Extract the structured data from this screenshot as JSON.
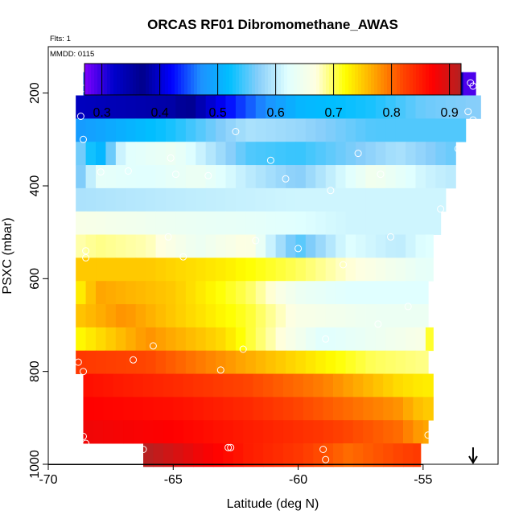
{
  "chart_data": {
    "type": "heatmap",
    "title": "ORCAS RF01 Dibromomethane_AWAS",
    "flights_note": "Flts: 1",
    "date_note": "MMDD: 0115",
    "xlabel": "Latitude (deg N)",
    "ylabel": "PSXC (mbar)",
    "xlim": [
      -70,
      -52
    ],
    "ylim": [
      1000,
      100
    ],
    "x_ticks": [
      -70,
      -65,
      -60,
      -55
    ],
    "y_ticks": [
      200,
      400,
      600,
      800,
      1000
    ],
    "colorbar": {
      "range": [
        0.27,
        0.92
      ],
      "ticks": [
        0.3,
        0.4,
        0.5,
        0.6,
        0.7,
        0.8,
        0.9
      ],
      "colors": [
        "#7F00FF",
        "#0000CD",
        "#00008B",
        "#0000FF",
        "#1E90FF",
        "#00BFFF",
        "#87CEFA",
        "#E0FFFF",
        "#FFFFE0",
        "#FFFF00",
        "#FFA500",
        "#FF4500",
        "#FF0000",
        "#B22222"
      ]
    },
    "bands": [
      {
        "p": 180,
        "lat_start": -68.6,
        "lat_end": -52.9,
        "stops": [
          [
            -68.6,
            0.46
          ],
          [
            -64,
            0.47
          ],
          [
            -60,
            0.5
          ],
          [
            -56,
            0.52
          ],
          [
            -54,
            0.48
          ],
          [
            -53.5,
            0.35
          ],
          [
            -53.2,
            0.29
          ]
        ]
      },
      {
        "p": 230,
        "lat_start": -68.9,
        "lat_end": -52.7,
        "stops": [
          [
            -68.9,
            0.33
          ],
          [
            -65,
            0.35
          ],
          [
            -62,
            0.45
          ],
          [
            -60,
            0.51
          ],
          [
            -57,
            0.53
          ],
          [
            -55,
            0.56
          ],
          [
            -53,
            0.57
          ]
        ]
      },
      {
        "p": 280,
        "lat_start": -68.9,
        "lat_end": -53.3,
        "stops": [
          [
            -68.9,
            0.48
          ],
          [
            -65,
            0.53
          ],
          [
            -62,
            0.59
          ],
          [
            -60,
            0.58
          ],
          [
            -57,
            0.55
          ],
          [
            -55,
            0.55
          ],
          [
            -53.3,
            0.55
          ]
        ]
      },
      {
        "p": 330,
        "lat_start": -68.9,
        "lat_end": -53.7,
        "stops": [
          [
            -68.9,
            0.58
          ],
          [
            -68,
            0.5
          ],
          [
            -67,
            0.62
          ],
          [
            -65,
            0.64
          ],
          [
            -62,
            0.55
          ],
          [
            -60,
            0.54
          ],
          [
            -57.5,
            0.57
          ],
          [
            -56,
            0.59
          ],
          [
            -54,
            0.56
          ]
        ]
      },
      {
        "p": 380,
        "lat_start": -68.9,
        "lat_end": -53.7,
        "stops": [
          [
            -68.9,
            0.55
          ],
          [
            -68,
            0.63
          ],
          [
            -66,
            0.62
          ],
          [
            -64,
            0.64
          ],
          [
            -62,
            0.6
          ],
          [
            -60,
            0.57
          ],
          [
            -58,
            0.62
          ],
          [
            -57,
            0.65
          ],
          [
            -55,
            0.61
          ],
          [
            -54,
            0.6
          ]
        ]
      },
      {
        "p": 430,
        "lat_start": -68.9,
        "lat_end": -54.1,
        "stops": [
          [
            -68.9,
            0.59
          ],
          [
            -65,
            0.6
          ],
          [
            -60,
            0.61
          ],
          [
            -57,
            0.61
          ],
          [
            -55,
            0.61
          ]
        ]
      },
      {
        "p": 480,
        "lat_start": -68.9,
        "lat_end": -54.3,
        "stops": [
          [
            -68.9,
            0.66
          ],
          [
            -65,
            0.64
          ],
          [
            -62,
            0.63
          ],
          [
            -58,
            0.61
          ],
          [
            -55,
            0.61
          ]
        ]
      },
      {
        "p": 530,
        "lat_start": -68.9,
        "lat_end": -54.6,
        "stops": [
          [
            -68.9,
            0.68
          ],
          [
            -68,
            0.69
          ],
          [
            -66,
            0.68
          ],
          [
            -64,
            0.64
          ],
          [
            -62,
            0.67
          ],
          [
            -61,
            0.6
          ],
          [
            -60,
            0.55
          ],
          [
            -58,
            0.62
          ],
          [
            -56,
            0.6
          ],
          [
            -55,
            0.62
          ]
        ]
      },
      {
        "p": 580,
        "lat_start": -68.9,
        "lat_end": -54.6,
        "stops": [
          [
            -68.9,
            0.75
          ],
          [
            -66,
            0.75
          ],
          [
            -63,
            0.73
          ],
          [
            -60,
            0.7
          ],
          [
            -57,
            0.66
          ],
          [
            -55,
            0.63
          ]
        ]
      },
      {
        "p": 630,
        "lat_start": -68.9,
        "lat_end": -54.8,
        "stops": [
          [
            -68.9,
            0.72
          ],
          [
            -68,
            0.77
          ],
          [
            -65,
            0.75
          ],
          [
            -62,
            0.7
          ],
          [
            -60,
            0.64
          ],
          [
            -58,
            0.62
          ],
          [
            -55,
            0.62
          ]
        ]
      },
      {
        "p": 680,
        "lat_start": -68.9,
        "lat_end": -54.8,
        "stops": [
          [
            -68.9,
            0.75
          ],
          [
            -67,
            0.78
          ],
          [
            -65,
            0.75
          ],
          [
            -62,
            0.71
          ],
          [
            -60,
            0.66
          ],
          [
            -57,
            0.64
          ],
          [
            -55,
            0.64
          ]
        ]
      },
      {
        "p": 730,
        "lat_start": -68.9,
        "lat_end": -54.6,
        "stops": [
          [
            -68.9,
            0.72
          ],
          [
            -66,
            0.78
          ],
          [
            -63,
            0.74
          ],
          [
            -61,
            0.68
          ],
          [
            -59,
            0.62
          ],
          [
            -57,
            0.64
          ],
          [
            -55,
            0.66
          ],
          [
            -54.7,
            0.72
          ]
        ]
      },
      {
        "p": 780,
        "lat_start": -68.9,
        "lat_end": -54.8,
        "stops": [
          [
            -68.9,
            0.83
          ],
          [
            -66,
            0.82
          ],
          [
            -63,
            0.78
          ],
          [
            -60,
            0.74
          ],
          [
            -57,
            0.7
          ],
          [
            -55,
            0.69
          ]
        ]
      },
      {
        "p": 830,
        "lat_start": -68.6,
        "lat_end": -54.6,
        "stops": [
          [
            -68.6,
            0.86
          ],
          [
            -65,
            0.84
          ],
          [
            -62,
            0.82
          ],
          [
            -59,
            0.79
          ],
          [
            -56,
            0.74
          ],
          [
            -55,
            0.73
          ]
        ]
      },
      {
        "p": 880,
        "lat_start": -68.6,
        "lat_end": -54.6,
        "stops": [
          [
            -68.6,
            0.87
          ],
          [
            -65,
            0.86
          ],
          [
            -62,
            0.84
          ],
          [
            -59,
            0.81
          ],
          [
            -56,
            0.78
          ],
          [
            -55,
            0.75
          ]
        ]
      },
      {
        "p": 930,
        "lat_start": -68.6,
        "lat_end": -54.8,
        "stops": [
          [
            -68.6,
            0.88
          ],
          [
            -65,
            0.87
          ],
          [
            -62,
            0.85
          ],
          [
            -59,
            0.83
          ],
          [
            -56,
            0.8
          ],
          [
            -55,
            0.77
          ]
        ]
      },
      {
        "p": 980,
        "lat_start": -66.2,
        "lat_end": -55.1,
        "stops": [
          [
            -66.2,
            0.92
          ],
          [
            -64,
            0.88
          ],
          [
            -62,
            0.85
          ],
          [
            -60,
            0.83
          ],
          [
            -58,
            0.8
          ],
          [
            -56,
            0.82
          ],
          [
            -55.1,
            0.83
          ]
        ]
      }
    ],
    "sample_points": [
      [
        -68.6,
        190
      ],
      [
        -66.1,
        178
      ],
      [
        -60.4,
        178
      ],
      [
        -56.0,
        178
      ],
      [
        -53.1,
        178
      ],
      [
        -53.0,
        185
      ],
      [
        -68.7,
        250
      ],
      [
        -53.2,
        240
      ],
      [
        -53.0,
        258
      ],
      [
        -68.6,
        300
      ],
      [
        -62.5,
        283
      ],
      [
        -53.6,
        320
      ],
      [
        -65.1,
        340
      ],
      [
        -61.1,
        345
      ],
      [
        -57.6,
        330
      ],
      [
        -53.4,
        330
      ],
      [
        -67.9,
        370
      ],
      [
        -66.8,
        368
      ],
      [
        -64.9,
        375
      ],
      [
        -63.6,
        378
      ],
      [
        -60.5,
        385
      ],
      [
        -56.7,
        375
      ],
      [
        -58.7,
        410
      ],
      [
        -54.3,
        450
      ],
      [
        -65.2,
        510
      ],
      [
        -61.7,
        518
      ],
      [
        -56.3,
        510
      ],
      [
        -68.5,
        540
      ],
      [
        -68.5,
        555
      ],
      [
        -64.6,
        553
      ],
      [
        -60.0,
        535
      ],
      [
        -58.2,
        570
      ],
      [
        -54.6,
        620
      ],
      [
        -55.6,
        660
      ],
      [
        -56.8,
        698
      ],
      [
        -58.9,
        730
      ],
      [
        -65.8,
        745
      ],
      [
        -62.2,
        752
      ],
      [
        -66.6,
        775
      ],
      [
        -68.8,
        780
      ],
      [
        -68.6,
        800
      ],
      [
        -63.1,
        797
      ],
      [
        -54.4,
        838
      ],
      [
        -68.6,
        940
      ],
      [
        -68.5,
        955
      ],
      [
        -66.2,
        968
      ],
      [
        -62.8,
        964
      ],
      [
        -62.7,
        964
      ],
      [
        -59.0,
        968
      ],
      [
        -58.9,
        990
      ],
      [
        -54.8,
        937
      ],
      [
        -54.8,
        990
      ]
    ],
    "arrow_marker": {
      "lat": -53.0,
      "direction": "down"
    }
  }
}
